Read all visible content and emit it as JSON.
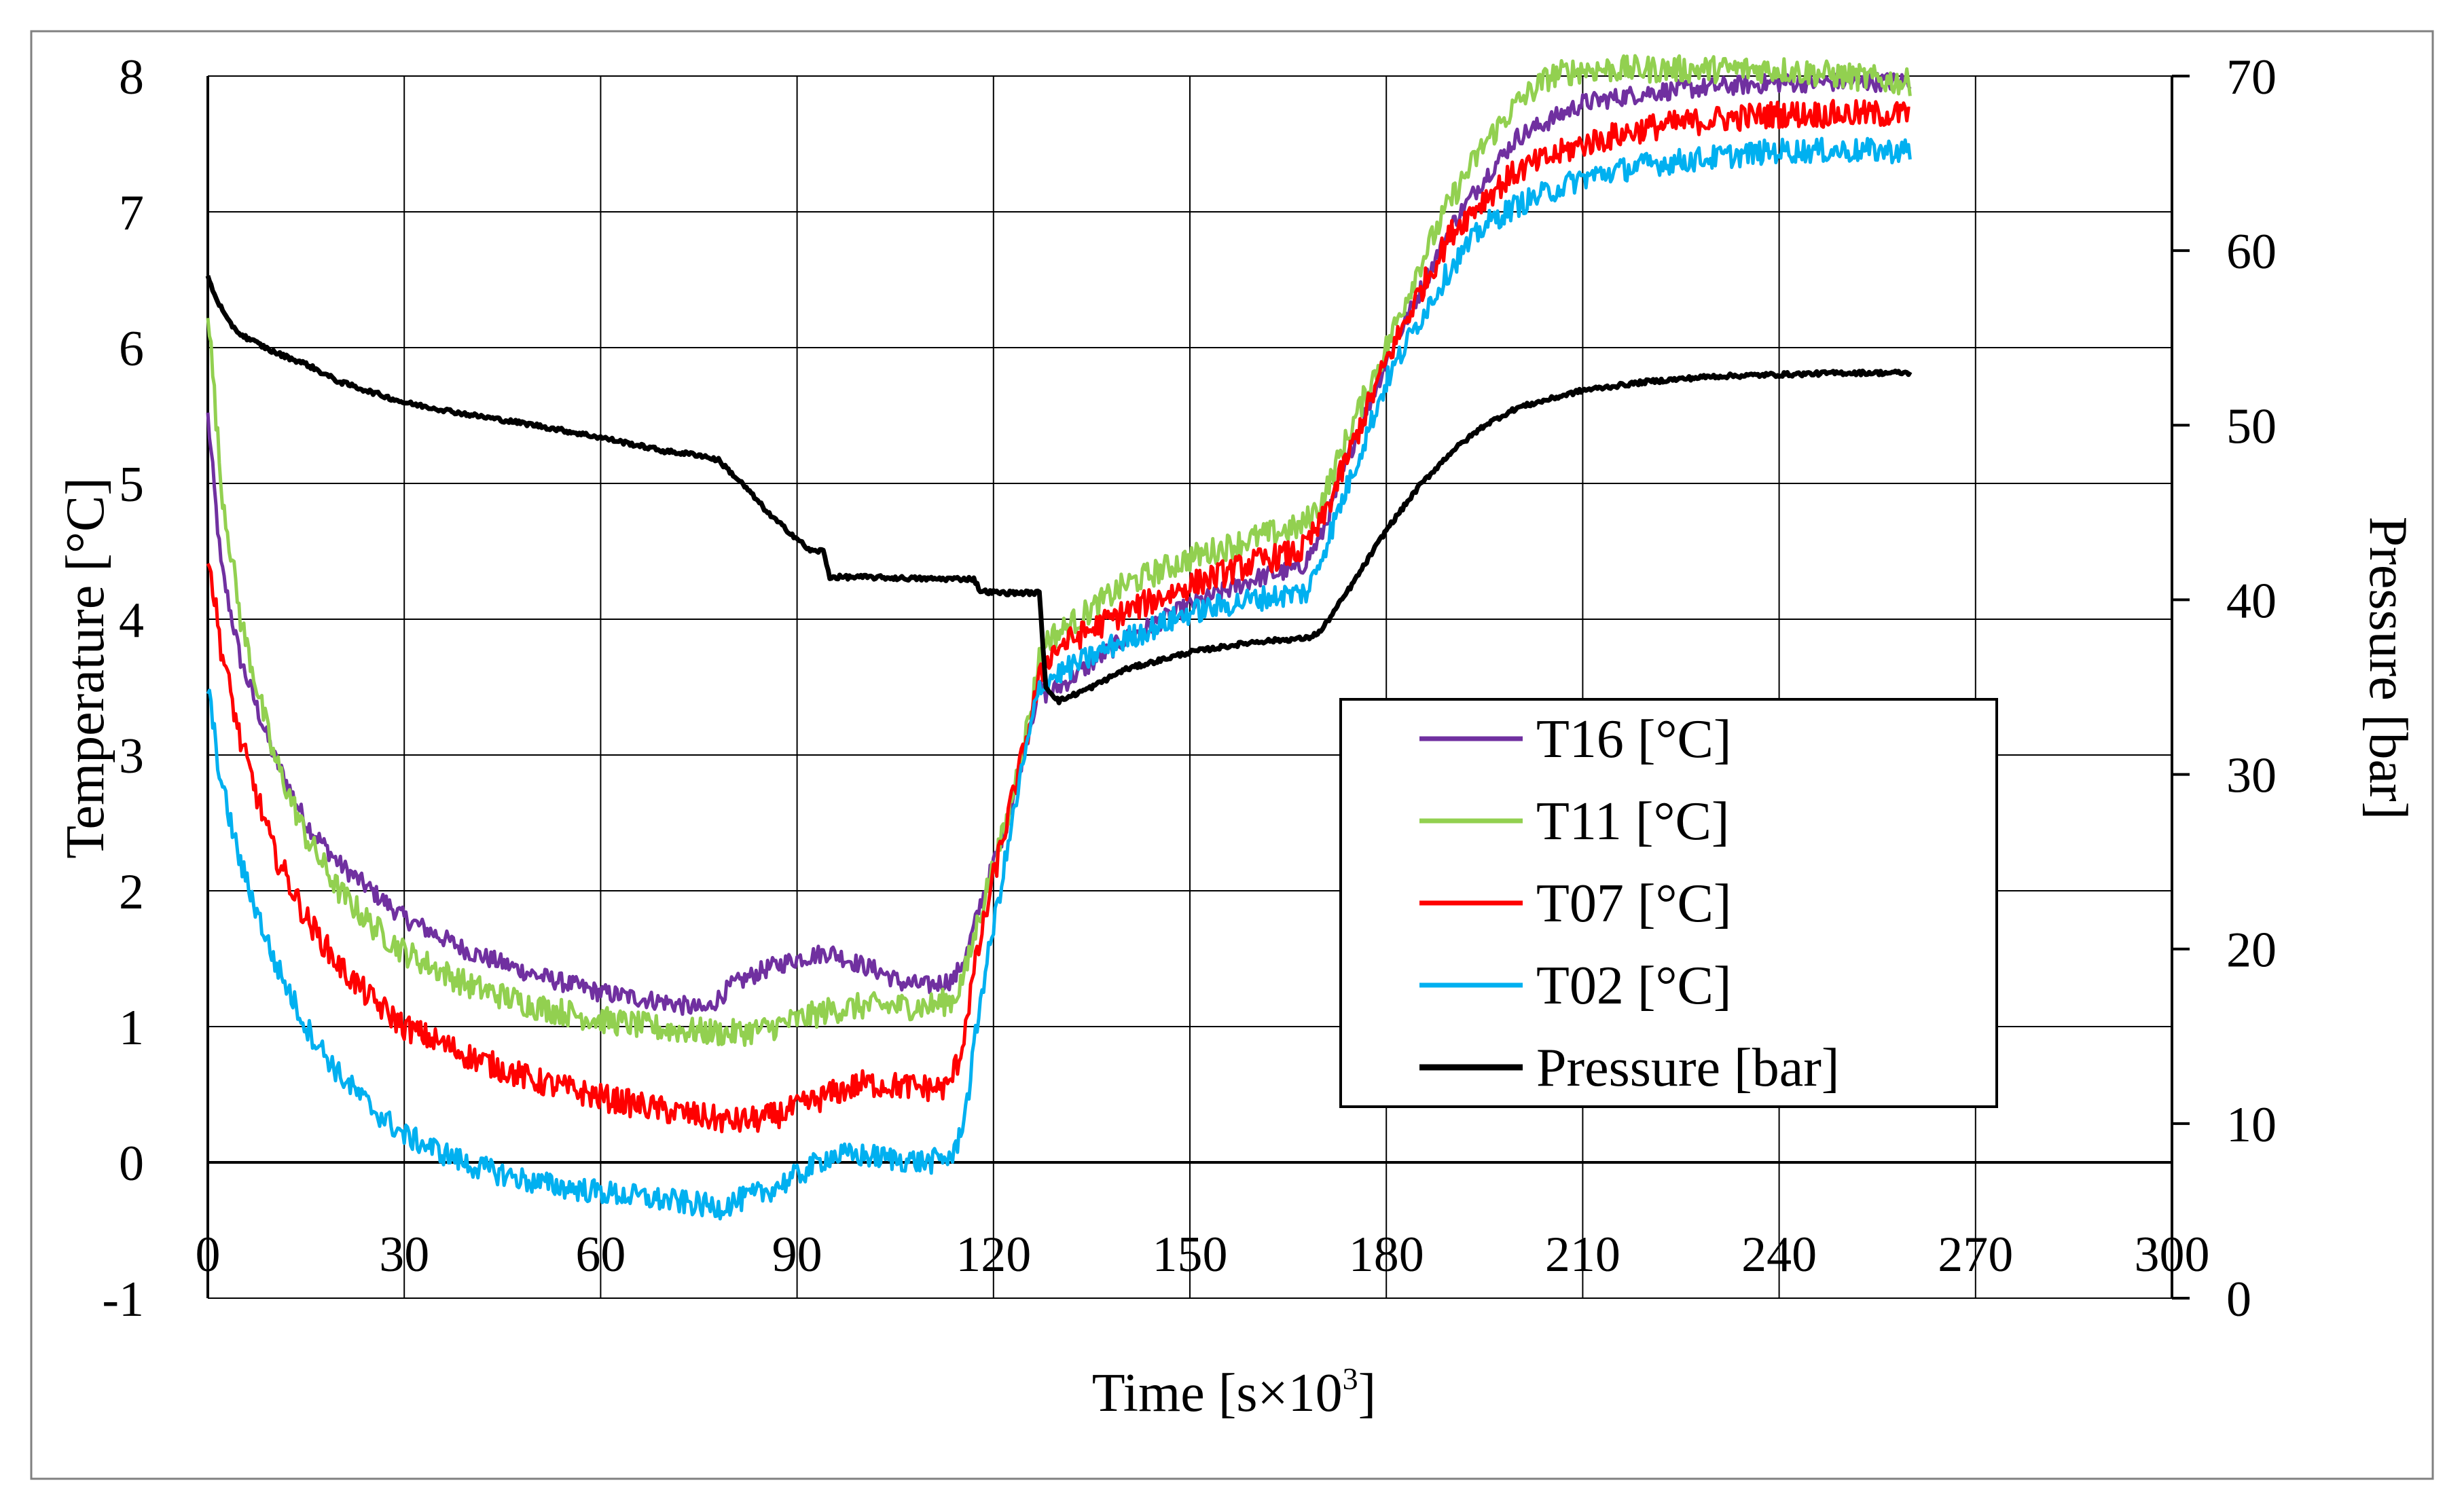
{
  "chart_data": {
    "type": "line",
    "title": "",
    "xlabel": "Time [s×10",
    "xlabel_sup": "3",
    "xlabel_end": "]",
    "ylabel": "Temperature [°C]",
    "y2label": "Pressure [bar]",
    "xlim": [
      0,
      300
    ],
    "ylim": [
      -1,
      8
    ],
    "y2lim": [
      0,
      70
    ],
    "grid": true,
    "legend_position": "center-right",
    "xticks": [
      0,
      30,
      60,
      90,
      120,
      150,
      180,
      210,
      240,
      270,
      300
    ],
    "yticks": [
      -1,
      0,
      1,
      2,
      3,
      4,
      5,
      6,
      7,
      8
    ],
    "y2ticks": [
      0,
      10,
      20,
      30,
      40,
      50,
      60,
      70
    ],
    "xtick_labels": [
      "0",
      "30",
      "60",
      "90",
      "120",
      "150",
      "180",
      "210",
      "240",
      "270",
      "300"
    ],
    "ytick_labels": [
      "-1",
      "0",
      "1",
      "2",
      "3",
      "4",
      "5",
      "6",
      "7",
      "8"
    ],
    "y2tick_labels": [
      "0",
      "10",
      "20",
      "30",
      "40",
      "50",
      "60",
      "70"
    ],
    "series": [
      {
        "name": "T16 [°C]",
        "axis": "left",
        "color": "#7030a0",
        "noise": 0.07,
        "points": [
          [
            0,
            5.5
          ],
          [
            2,
            4.4
          ],
          [
            5,
            3.7
          ],
          [
            10,
            3.0
          ],
          [
            15,
            2.5
          ],
          [
            20,
            2.2
          ],
          [
            25,
            2.0
          ],
          [
            30,
            1.8
          ],
          [
            40,
            1.55
          ],
          [
            50,
            1.38
          ],
          [
            60,
            1.25
          ],
          [
            70,
            1.18
          ],
          [
            76,
            1.12
          ],
          [
            80,
            1.3
          ],
          [
            85,
            1.42
          ],
          [
            90,
            1.5
          ],
          [
            95,
            1.55
          ],
          [
            100,
            1.45
          ],
          [
            103,
            1.4
          ],
          [
            106,
            1.32
          ],
          [
            110,
            1.3
          ],
          [
            114,
            1.35
          ],
          [
            116,
            1.55
          ],
          [
            118,
            1.9
          ],
          [
            122,
            2.5
          ],
          [
            126,
            3.3
          ],
          [
            127,
            3.5
          ],
          [
            128,
            3.45
          ],
          [
            130,
            3.5
          ],
          [
            140,
            3.85
          ],
          [
            150,
            4.1
          ],
          [
            160,
            4.3
          ],
          [
            167,
            4.38
          ],
          [
            170,
            4.6
          ],
          [
            175,
            5.3
          ],
          [
            180,
            5.9
          ],
          [
            185,
            6.4
          ],
          [
            190,
            6.9
          ],
          [
            195,
            7.25
          ],
          [
            200,
            7.55
          ],
          [
            210,
            7.8
          ],
          [
            220,
            7.88
          ],
          [
            230,
            7.92
          ],
          [
            240,
            7.95
          ],
          [
            260,
            7.96
          ]
        ]
      },
      {
        "name": "T11 [°C]",
        "axis": "left",
        "color": "#92d050",
        "noise": 0.1,
        "points": [
          [
            0,
            6.3
          ],
          [
            2,
            5.0
          ],
          [
            5,
            4.0
          ],
          [
            10,
            3.0
          ],
          [
            15,
            2.4
          ],
          [
            20,
            2.0
          ],
          [
            25,
            1.75
          ],
          [
            30,
            1.55
          ],
          [
            40,
            1.3
          ],
          [
            50,
            1.15
          ],
          [
            60,
            1.05
          ],
          [
            70,
            0.98
          ],
          [
            80,
            0.95
          ],
          [
            85,
            0.98
          ],
          [
            90,
            1.05
          ],
          [
            95,
            1.12
          ],
          [
            100,
            1.15
          ],
          [
            110,
            1.15
          ],
          [
            114,
            1.2
          ],
          [
            116,
            1.45
          ],
          [
            118,
            1.85
          ],
          [
            122,
            2.5
          ],
          [
            126,
            3.4
          ],
          [
            127,
            3.75
          ],
          [
            128,
            3.85
          ],
          [
            130,
            3.9
          ],
          [
            140,
            4.25
          ],
          [
            150,
            4.45
          ],
          [
            160,
            4.6
          ],
          [
            167,
            4.68
          ],
          [
            170,
            4.85
          ],
          [
            175,
            5.45
          ],
          [
            180,
            6.0
          ],
          [
            185,
            6.6
          ],
          [
            190,
            7.1
          ],
          [
            195,
            7.5
          ],
          [
            200,
            7.8
          ],
          [
            205,
            8.0
          ],
          [
            210,
            8.05
          ],
          [
            240,
            8.05
          ],
          [
            260,
            7.95
          ]
        ]
      },
      {
        "name": "T07 [°C]",
        "axis": "left",
        "color": "#ff0000",
        "noise": 0.1,
        "points": [
          [
            0,
            4.5
          ],
          [
            2,
            3.8
          ],
          [
            5,
            3.1
          ],
          [
            10,
            2.3
          ],
          [
            15,
            1.8
          ],
          [
            20,
            1.45
          ],
          [
            25,
            1.2
          ],
          [
            30,
            1.0
          ],
          [
            40,
            0.78
          ],
          [
            50,
            0.6
          ],
          [
            60,
            0.48
          ],
          [
            70,
            0.38
          ],
          [
            80,
            0.3
          ],
          [
            85,
            0.32
          ],
          [
            90,
            0.4
          ],
          [
            95,
            0.5
          ],
          [
            100,
            0.58
          ],
          [
            110,
            0.55
          ],
          [
            113,
            0.55
          ],
          [
            115,
            0.8
          ],
          [
            117,
            1.4
          ],
          [
            120,
            2.1
          ],
          [
            124,
            2.9
          ],
          [
            127,
            3.55
          ],
          [
            128,
            3.7
          ],
          [
            130,
            3.8
          ],
          [
            140,
            4.05
          ],
          [
            150,
            4.25
          ],
          [
            160,
            4.42
          ],
          [
            167,
            4.5
          ],
          [
            170,
            4.7
          ],
          [
            175,
            5.3
          ],
          [
            180,
            5.9
          ],
          [
            185,
            6.4
          ],
          [
            190,
            6.85
          ],
          [
            195,
            7.1
          ],
          [
            200,
            7.3
          ],
          [
            210,
            7.5
          ],
          [
            220,
            7.62
          ],
          [
            230,
            7.68
          ],
          [
            240,
            7.72
          ],
          [
            260,
            7.72
          ]
        ]
      },
      {
        "name": "T02 [°C]",
        "axis": "left",
        "color": "#00b0f0",
        "noise": 0.09,
        "points": [
          [
            0,
            3.5
          ],
          [
            2,
            2.8
          ],
          [
            5,
            2.2
          ],
          [
            10,
            1.5
          ],
          [
            15,
            1.0
          ],
          [
            20,
            0.65
          ],
          [
            25,
            0.4
          ],
          [
            30,
            0.2
          ],
          [
            40,
            -0.02
          ],
          [
            50,
            -0.15
          ],
          [
            60,
            -0.22
          ],
          [
            70,
            -0.28
          ],
          [
            78,
            -0.33
          ],
          [
            85,
            -0.22
          ],
          [
            90,
            -0.1
          ],
          [
            95,
            0.05
          ],
          [
            100,
            0.05
          ],
          [
            110,
            0.0
          ],
          [
            114,
            0.05
          ],
          [
            116,
            0.45
          ],
          [
            118,
            1.2
          ],
          [
            121,
            2.0
          ],
          [
            124,
            2.8
          ],
          [
            127,
            3.5
          ],
          [
            128,
            3.55
          ],
          [
            130,
            3.6
          ],
          [
            140,
            3.85
          ],
          [
            150,
            4.05
          ],
          [
            160,
            4.15
          ],
          [
            168,
            4.2
          ],
          [
            170,
            4.45
          ],
          [
            175,
            5.1
          ],
          [
            180,
            5.75
          ],
          [
            185,
            6.2
          ],
          [
            190,
            6.6
          ],
          [
            195,
            6.9
          ],
          [
            200,
            7.05
          ],
          [
            210,
            7.25
          ],
          [
            220,
            7.35
          ],
          [
            230,
            7.4
          ],
          [
            240,
            7.45
          ],
          [
            260,
            7.45
          ]
        ]
      },
      {
        "name": "Pressure [bar]",
        "axis": "right",
        "color": "#000000",
        "noise": 0.12,
        "points": [
          [
            0,
            58.5
          ],
          [
            1,
            57.5
          ],
          [
            3,
            56.0
          ],
          [
            5,
            55.2
          ],
          [
            10,
            54.2
          ],
          [
            15,
            53.5
          ],
          [
            20,
            52.5
          ],
          [
            30,
            51.3
          ],
          [
            40,
            50.6
          ],
          [
            50,
            50.0
          ],
          [
            60,
            49.3
          ],
          [
            70,
            48.5
          ],
          [
            75,
            48.3
          ],
          [
            78,
            48.0
          ],
          [
            82,
            46.5
          ],
          [
            86,
            44.8
          ],
          [
            90,
            43.5
          ],
          [
            92,
            42.8
          ],
          [
            94,
            42.8
          ],
          [
            95,
            41.3
          ],
          [
            100,
            41.3
          ],
          [
            110,
            41.2
          ],
          [
            117,
            41.2
          ],
          [
            118,
            40.5
          ],
          [
            121,
            40.4
          ],
          [
            127,
            40.4
          ],
          [
            128,
            35.0
          ],
          [
            130,
            34.2
          ],
          [
            135,
            35.0
          ],
          [
            140,
            36.0
          ],
          [
            150,
            37.0
          ],
          [
            160,
            37.6
          ],
          [
            168,
            37.8
          ],
          [
            170,
            38.2
          ],
          [
            175,
            41.0
          ],
          [
            180,
            44.0
          ],
          [
            185,
            46.5
          ],
          [
            190,
            48.5
          ],
          [
            195,
            50.0
          ],
          [
            200,
            51.0
          ],
          [
            210,
            52.0
          ],
          [
            220,
            52.5
          ],
          [
            230,
            52.8
          ],
          [
            240,
            52.9
          ],
          [
            250,
            53.0
          ],
          [
            260,
            53.0
          ]
        ]
      }
    ]
  }
}
